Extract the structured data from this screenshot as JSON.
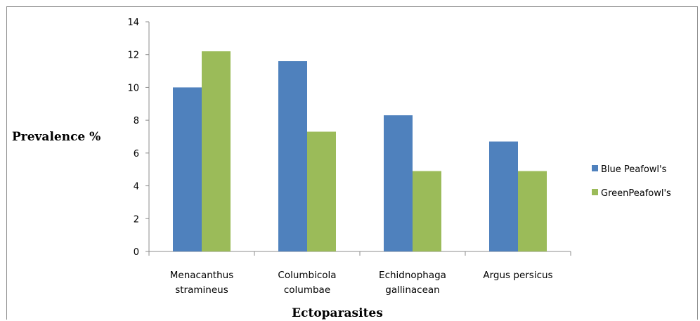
{
  "chart_data": {
    "type": "bar",
    "title": "",
    "xlabel": "Ectoparasites",
    "ylabel": "Prevalence %",
    "categories": [
      [
        "Menacanthus",
        "stramineus"
      ],
      [
        "Columbicola",
        "columbae"
      ],
      [
        "Echidnophaga",
        "gallinacean"
      ],
      [
        "Argus persicus"
      ]
    ],
    "series": [
      {
        "name": "Blue Peafowl's",
        "color": "#4f81bd",
        "values": [
          10,
          11.6,
          8.3,
          6.7
        ]
      },
      {
        "name": "GreenPeafowl's",
        "color": "#9bbb59",
        "values": [
          12.2,
          7.3,
          4.9,
          4.9
        ]
      }
    ],
    "ylim": [
      0,
      14
    ],
    "yticks": [
      0,
      2,
      4,
      6,
      8,
      10,
      12,
      14
    ],
    "grid": false,
    "legend_position": "right"
  }
}
